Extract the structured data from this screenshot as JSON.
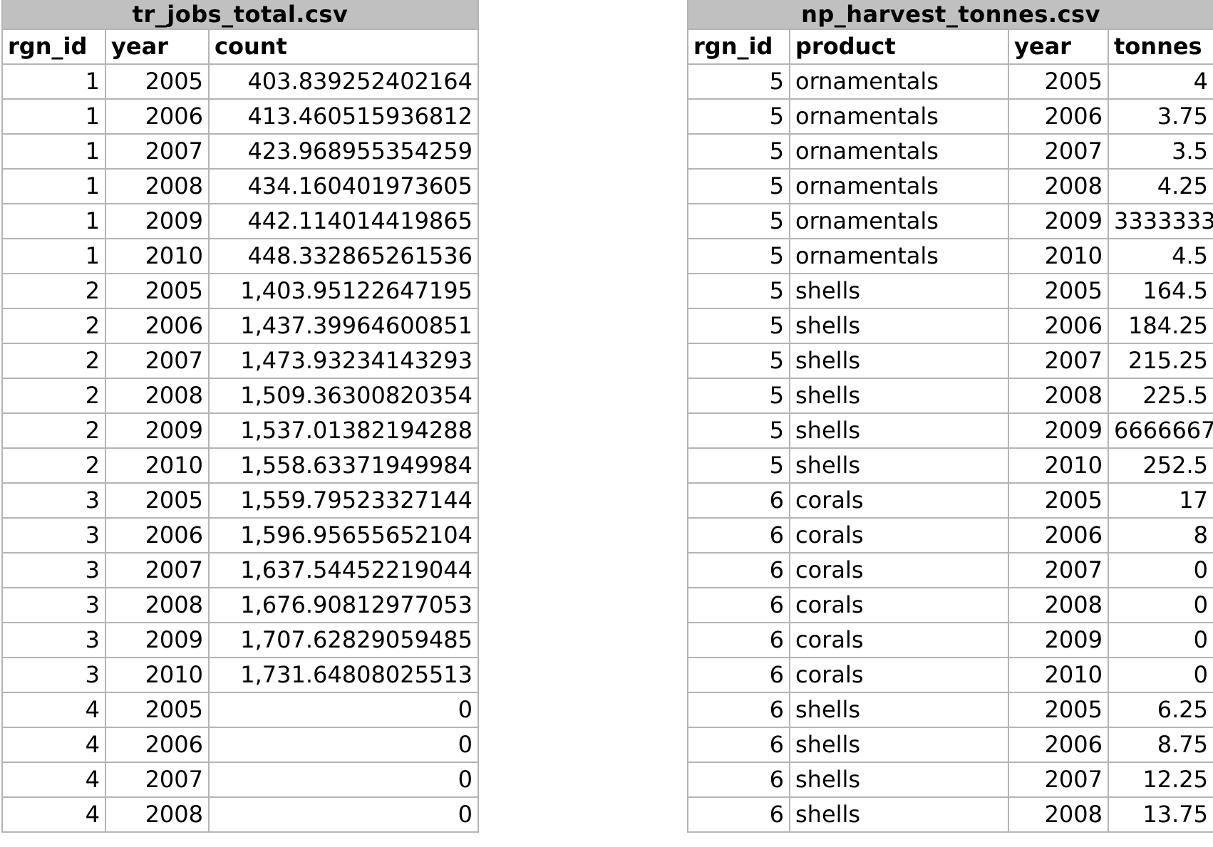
{
  "table_left": {
    "title": "tr_jobs_total.csv",
    "columns": [
      "rgn_id",
      "year",
      "count"
    ],
    "rows": [
      [
        "1",
        "2005",
        "403.839252402164"
      ],
      [
        "1",
        "2006",
        "413.460515936812"
      ],
      [
        "1",
        "2007",
        "423.968955354259"
      ],
      [
        "1",
        "2008",
        "434.160401973605"
      ],
      [
        "1",
        "2009",
        "442.114014419865"
      ],
      [
        "1",
        "2010",
        "448.332865261536"
      ],
      [
        "2",
        "2005",
        "1,403.95122647195"
      ],
      [
        "2",
        "2006",
        "1,437.39964600851"
      ],
      [
        "2",
        "2007",
        "1,473.93234143293"
      ],
      [
        "2",
        "2008",
        "1,509.36300820354"
      ],
      [
        "2",
        "2009",
        "1,537.01382194288"
      ],
      [
        "2",
        "2010",
        "1,558.63371949984"
      ],
      [
        "3",
        "2005",
        "1,559.79523327144"
      ],
      [
        "3",
        "2006",
        "1,596.95655652104"
      ],
      [
        "3",
        "2007",
        "1,637.54452219044"
      ],
      [
        "3",
        "2008",
        "1,676.90812977053"
      ],
      [
        "3",
        "2009",
        "1,707.62829059485"
      ],
      [
        "3",
        "2010",
        "1,731.64808025513"
      ],
      [
        "4",
        "2005",
        "0"
      ],
      [
        "4",
        "2006",
        "0"
      ],
      [
        "4",
        "2007",
        "0"
      ],
      [
        "4",
        "2008",
        "0"
      ]
    ]
  },
  "table_right": {
    "title": "np_harvest_tonnes.csv",
    "columns": [
      "rgn_id",
      "product",
      "year",
      "tonnes"
    ],
    "rows": [
      [
        "5",
        "ornamentals",
        "2005",
        "4"
      ],
      [
        "5",
        "ornamentals",
        "2006",
        "3.75"
      ],
      [
        "5",
        "ornamentals",
        "2007",
        "3.5"
      ],
      [
        "5",
        "ornamentals",
        "2008",
        "4.25"
      ],
      [
        "5",
        "ornamentals",
        "2009",
        "3333333"
      ],
      [
        "5",
        "ornamentals",
        "2010",
        "4.5"
      ],
      [
        "5",
        "shells",
        "2005",
        "164.5"
      ],
      [
        "5",
        "shells",
        "2006",
        "184.25"
      ],
      [
        "5",
        "shells",
        "2007",
        "215.25"
      ],
      [
        "5",
        "shells",
        "2008",
        "225.5"
      ],
      [
        "5",
        "shells",
        "2009",
        "6666667"
      ],
      [
        "5",
        "shells",
        "2010",
        "252.5"
      ],
      [
        "6",
        "corals",
        "2005",
        "17"
      ],
      [
        "6",
        "corals",
        "2006",
        "8"
      ],
      [
        "6",
        "corals",
        "2007",
        "0"
      ],
      [
        "6",
        "corals",
        "2008",
        "0"
      ],
      [
        "6",
        "corals",
        "2009",
        "0"
      ],
      [
        "6",
        "corals",
        "2010",
        "0"
      ],
      [
        "6",
        "shells",
        "2005",
        "6.25"
      ],
      [
        "6",
        "shells",
        "2006",
        "8.75"
      ],
      [
        "6",
        "shells",
        "2007",
        "12.25"
      ],
      [
        "6",
        "shells",
        "2008",
        "13.75"
      ]
    ]
  }
}
